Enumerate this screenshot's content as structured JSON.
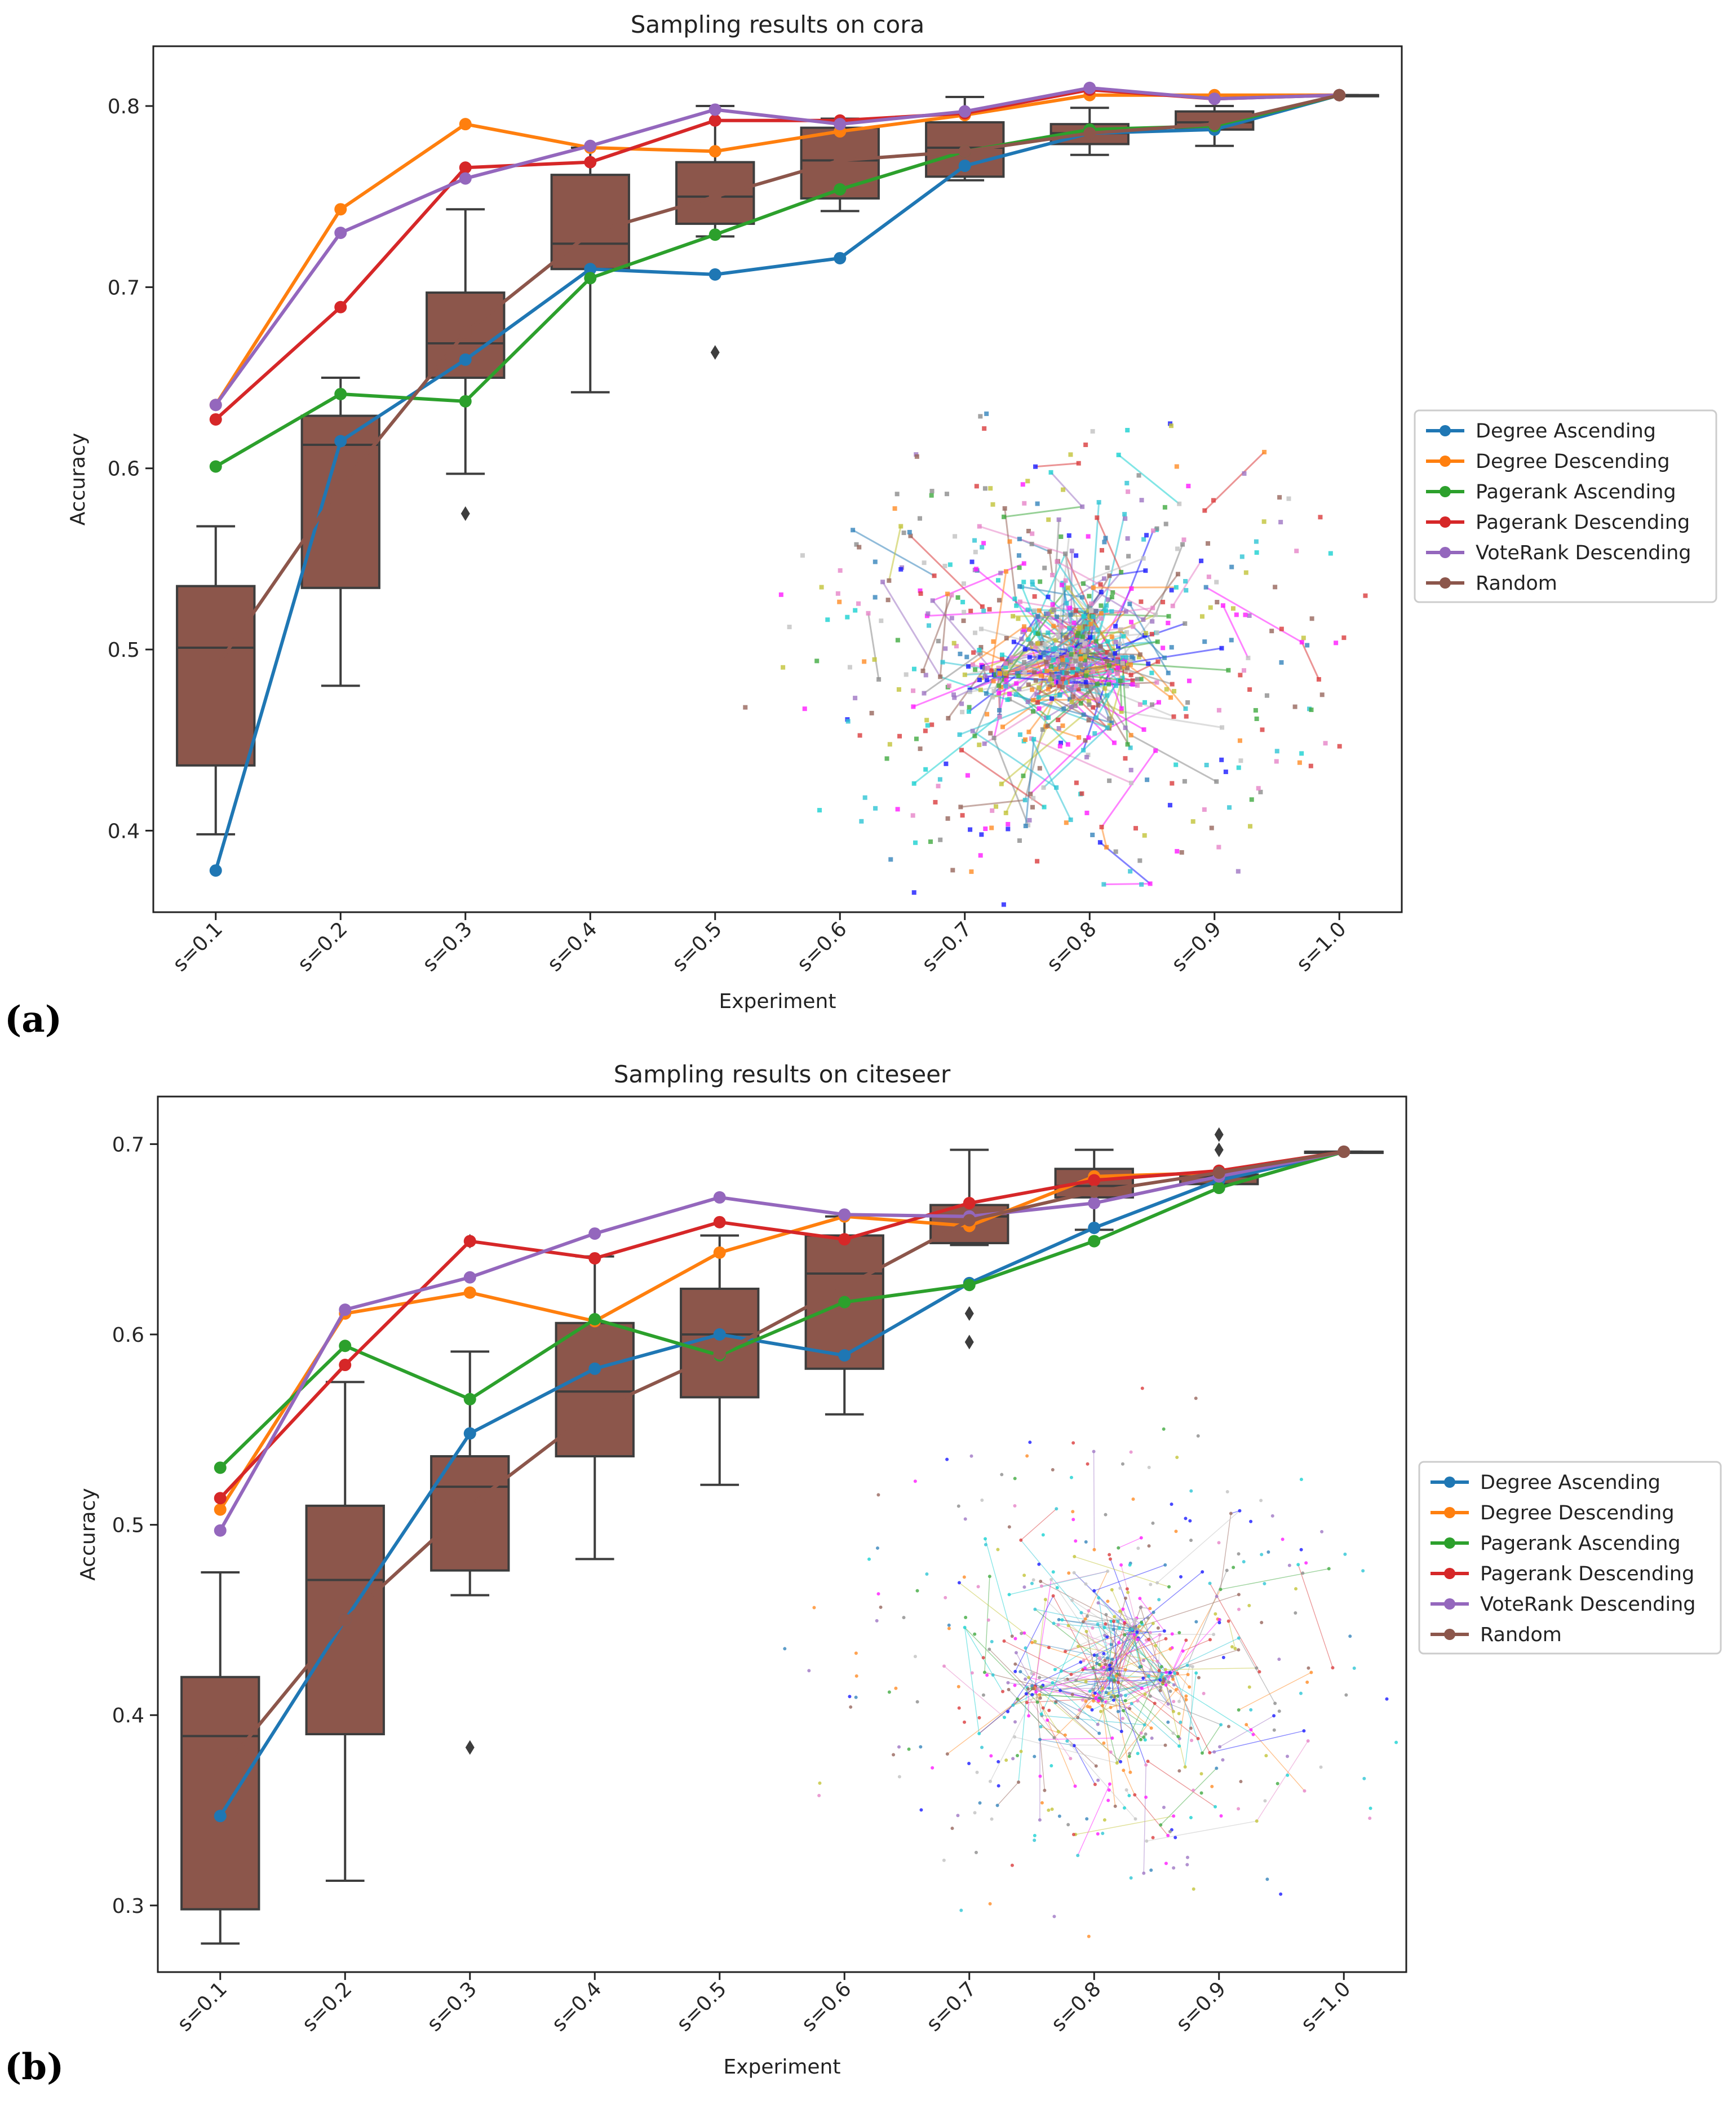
{
  "chart_data": [
    {
      "panel_label": "(a)",
      "type": "box+line",
      "title": "Sampling results on cora",
      "xlabel": "Experiment",
      "ylabel": "Accuracy",
      "categories": [
        "s=0.1",
        "s=0.2",
        "s=0.3",
        "s=0.4",
        "s=0.5",
        "s=0.6",
        "s=0.7",
        "s=0.8",
        "s=0.9",
        "s=1.0"
      ],
      "ylim": [
        0.355,
        0.833
      ],
      "yticks": [
        0.4,
        0.5,
        0.6,
        0.7,
        0.8
      ],
      "legend_position": "right",
      "series": [
        {
          "name": "Degree Ascending",
          "color": "#1f77b4",
          "values": [
            0.378,
            0.615,
            0.66,
            0.71,
            0.707,
            0.716,
            0.767,
            0.785,
            0.787,
            0.806
          ]
        },
        {
          "name": "Degree Descending",
          "color": "#ff7f0e",
          "values": [
            0.635,
            0.743,
            0.79,
            0.777,
            0.775,
            0.786,
            0.795,
            0.806,
            0.806,
            0.806
          ]
        },
        {
          "name": "Pagerank Ascending",
          "color": "#2ca02c",
          "values": [
            0.601,
            0.641,
            0.637,
            0.705,
            0.729,
            0.754,
            0.775,
            0.787,
            0.789,
            0.806
          ]
        },
        {
          "name": "Pagerank Descending",
          "color": "#d62728",
          "values": [
            0.627,
            0.689,
            0.766,
            0.769,
            0.792,
            0.792,
            0.796,
            0.809,
            0.804,
            0.806
          ]
        },
        {
          "name": "VoteRank Descending",
          "color": "#9467bd",
          "values": [
            0.635,
            0.73,
            0.76,
            0.778,
            0.798,
            0.79,
            0.797,
            0.81,
            0.804,
            0.806
          ]
        },
        {
          "name": "Random",
          "color": "#8c564b",
          "values": [
            0.49,
            0.59,
            0.675,
            0.73,
            0.75,
            0.77,
            0.775,
            0.785,
            0.79,
            0.806
          ]
        }
      ],
      "boxes": [
        {
          "min": 0.398,
          "q1": 0.436,
          "median": 0.501,
          "q3": 0.535,
          "max": 0.568,
          "outliers": []
        },
        {
          "min": 0.48,
          "q1": 0.534,
          "median": 0.613,
          "q3": 0.629,
          "max": 0.65,
          "outliers": []
        },
        {
          "min": 0.597,
          "q1": 0.65,
          "median": 0.669,
          "q3": 0.697,
          "max": 0.743,
          "outliers": [
            0.575
          ]
        },
        {
          "min": 0.642,
          "q1": 0.71,
          "median": 0.724,
          "q3": 0.762,
          "max": 0.777,
          "outliers": []
        },
        {
          "min": 0.728,
          "q1": 0.735,
          "median": 0.75,
          "q3": 0.769,
          "max": 0.8,
          "outliers": [
            0.664
          ]
        },
        {
          "min": 0.742,
          "q1": 0.749,
          "median": 0.77,
          "q3": 0.788,
          "max": 0.793,
          "outliers": []
        },
        {
          "min": 0.759,
          "q1": 0.761,
          "median": 0.777,
          "q3": 0.791,
          "max": 0.805,
          "outliers": []
        },
        {
          "min": 0.773,
          "q1": 0.779,
          "median": 0.785,
          "q3": 0.79,
          "max": 0.799,
          "outliers": []
        },
        {
          "min": 0.778,
          "q1": 0.787,
          "median": 0.791,
          "q3": 0.797,
          "max": 0.8,
          "outliers": []
        },
        {
          "min": 0.806,
          "q1": 0.806,
          "median": 0.806,
          "q3": 0.806,
          "max": 0.806,
          "outliers": []
        }
      ],
      "inset": "network-graph-visualization"
    },
    {
      "panel_label": "(b)",
      "type": "box+line",
      "title": "Sampling results on citeseer",
      "xlabel": "Experiment",
      "ylabel": "Accuracy",
      "categories": [
        "s=0.1",
        "s=0.2",
        "s=0.3",
        "s=0.4",
        "s=0.5",
        "s=0.6",
        "s=0.7",
        "s=0.8",
        "s=0.9",
        "s=1.0"
      ],
      "ylim": [
        0.265,
        0.725
      ],
      "yticks": [
        0.3,
        0.4,
        0.5,
        0.6,
        0.7
      ],
      "legend_position": "right",
      "series": [
        {
          "name": "Degree Ascending",
          "color": "#1f77b4",
          "values": [
            0.347,
            0.45,
            0.548,
            0.582,
            0.6,
            0.589,
            0.627,
            0.656,
            0.681,
            0.696
          ]
        },
        {
          "name": "Degree Descending",
          "color": "#ff7f0e",
          "values": [
            0.508,
            0.611,
            0.622,
            0.607,
            0.643,
            0.662,
            0.657,
            0.683,
            0.685,
            0.696
          ]
        },
        {
          "name": "Pagerank Ascending",
          "color": "#2ca02c",
          "values": [
            0.53,
            0.594,
            0.566,
            0.608,
            0.589,
            0.617,
            0.626,
            0.649,
            0.677,
            0.696
          ]
        },
        {
          "name": "Pagerank Descending",
          "color": "#d62728",
          "values": [
            0.514,
            0.584,
            0.649,
            0.64,
            0.659,
            0.65,
            0.669,
            0.681,
            0.686,
            0.696
          ]
        },
        {
          "name": "VoteRank Descending",
          "color": "#9467bd",
          "values": [
            0.497,
            0.613,
            0.63,
            0.653,
            0.672,
            0.663,
            0.662,
            0.669,
            0.683,
            0.696
          ]
        },
        {
          "name": "Random",
          "color": "#8c564b",
          "values": [
            0.37,
            0.45,
            0.51,
            0.56,
            0.59,
            0.625,
            0.66,
            0.675,
            0.685,
            0.696
          ]
        }
      ],
      "boxes": [
        {
          "min": 0.28,
          "q1": 0.298,
          "median": 0.389,
          "q3": 0.42,
          "max": 0.475,
          "outliers": []
        },
        {
          "min": 0.313,
          "q1": 0.39,
          "median": 0.471,
          "q3": 0.51,
          "max": 0.575,
          "outliers": []
        },
        {
          "min": 0.463,
          "q1": 0.476,
          "median": 0.52,
          "q3": 0.536,
          "max": 0.591,
          "outliers": [
            0.383,
            0.649
          ]
        },
        {
          "min": 0.482,
          "q1": 0.536,
          "median": 0.57,
          "q3": 0.606,
          "max": 0.641,
          "outliers": []
        },
        {
          "min": 0.521,
          "q1": 0.567,
          "median": 0.6,
          "q3": 0.624,
          "max": 0.652,
          "outliers": []
        },
        {
          "min": 0.558,
          "q1": 0.582,
          "median": 0.632,
          "q3": 0.652,
          "max": 0.662,
          "outliers": []
        },
        {
          "min": 0.647,
          "q1": 0.648,
          "median": 0.662,
          "q3": 0.668,
          "max": 0.697,
          "outliers": [
            0.596,
            0.611
          ]
        },
        {
          "min": 0.655,
          "q1": 0.672,
          "median": 0.678,
          "q3": 0.687,
          "max": 0.697,
          "outliers": []
        },
        {
          "min": 0.679,
          "q1": 0.679,
          "median": 0.683,
          "q3": 0.684,
          "max": 0.685,
          "outliers": [
            0.697,
            0.705
          ]
        },
        {
          "min": 0.696,
          "q1": 0.696,
          "median": 0.696,
          "q3": 0.696,
          "max": 0.696,
          "outliers": []
        }
      ],
      "inset": "network-graph-visualization"
    }
  ]
}
